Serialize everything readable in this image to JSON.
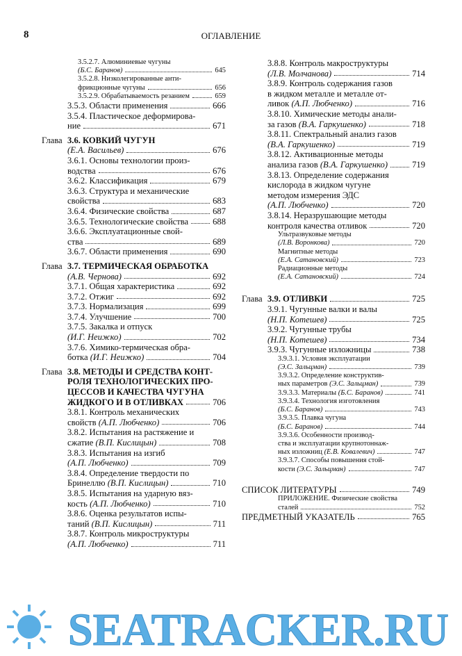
{
  "header": {
    "page_number": 8,
    "title": "ОГЛАВЛЕНИЕ"
  },
  "left": {
    "entries": [
      {
        "lines": [
          "3.5.2.7. Алюминиевые чугуны",
          "(Б.С. Баранов)"
        ],
        "page": 645
      },
      {
        "lines": [
          "3.5.2.8. Низколегированные анти-",
          "фрикционные чугуны"
        ],
        "page": 656
      },
      {
        "lines": [
          "3.5.2.9. Обрабатываемость резанием"
        ],
        "page": 659
      },
      {
        "lines": [
          "3.5.3. Области применения"
        ],
        "page": 666
      },
      {
        "lines": [
          "3.5.4. Пластическое деформирова-",
          "ние"
        ],
        "page": 671
      },
      {
        "label": "Глава",
        "lines": [
          "3.6. КОВКИЙ ЧУГУН",
          "(Е.А. Васильев)"
        ],
        "page": 676
      },
      {
        "lines": [
          "3.6.1. Основы технологии произ-",
          "водства"
        ],
        "page": 676
      },
      {
        "lines": [
          "3.6.2. Классификация"
        ],
        "page": 679
      },
      {
        "lines": [
          "3.6.3. Структура и механические",
          "свойства"
        ],
        "page": 683
      },
      {
        "lines": [
          "3.6.4. Физические свойства"
        ],
        "page": 687
      },
      {
        "lines": [
          "3.6.5. Технологические свойства"
        ],
        "page": 688
      },
      {
        "lines": [
          "3.6.6. Эксплуатационные свой-",
          "ства"
        ],
        "page": 689
      },
      {
        "lines": [
          "3.6.7. Области применения"
        ],
        "page": 690
      },
      {
        "label": "Глава",
        "lines": [
          "3.7. ТЕРМИЧЕСКАЯ ОБРАБОТКА",
          "(А.В. Чернова)"
        ],
        "page": 692
      },
      {
        "lines": [
          "3.7.1. Общая характеристика"
        ],
        "page": 692
      },
      {
        "lines": [
          "3.7.2. Отжиг"
        ],
        "page": 692
      },
      {
        "lines": [
          "3.7.3. Нормализация"
        ],
        "page": 699
      },
      {
        "lines": [
          "3.7.4. Улучшение"
        ],
        "page": 700
      },
      {
        "lines": [
          "3.7.5. Закалка и отпуск",
          "(И.Г. Неижко)"
        ],
        "page": 702
      },
      {
        "lines": [
          "3.7.6. Химико-термическая обра-",
          "ботка (И.Г. Неижко)"
        ],
        "page": 704
      },
      {
        "label": "Глава",
        "lines": [
          "3.8. МЕТОДЫ И СРЕДСТВА КОНТ-",
          "РОЛЯ ТЕХНОЛОГИЧЕСКИХ ПРО-",
          "ЦЕССОВ И КАЧЕСТВА ЧУГУНА",
          "ЖИДКОГО И В ОТЛИВКАХ"
        ],
        "page": 706
      },
      {
        "lines": [
          "3.8.1. Контроль механических",
          "свойств (А.П. Любченко)"
        ],
        "page": 706
      },
      {
        "lines": [
          "3.8.2. Испытания на растяжение и",
          "сжатие (В.П. Кислицын)"
        ],
        "page": 708
      },
      {
        "lines": [
          "3.8.3. Испытания на изгиб",
          "(А.П. Любченко)"
        ],
        "page": 709
      },
      {
        "lines": [
          "3.8.4. Определение твердости по",
          "Бринеллю (В.П. Кислицын)"
        ],
        "page": 710
      },
      {
        "lines": [
          "3.8.5. Испытания на ударную вяз-",
          "кость (А.П. Любченко)"
        ],
        "page": 710
      },
      {
        "lines": [
          "3.8.6. Оценка результатов испы-",
          "таний (В.П. Кислицын)"
        ],
        "page": 711
      },
      {
        "lines": [
          "3.8.7. Контроль микроструктуры",
          "(А.П. Любченко)"
        ],
        "page": 711
      }
    ]
  },
  "right": {
    "entries": [
      {
        "lines": [
          "3.8.8. Контроль макроструктуры",
          "(Л.В. Молчанова)"
        ],
        "page": 714
      },
      {
        "lines": [
          "3.8.9. Контроль содержания газов",
          "в жидком металле и металле от-",
          "ливок (А.П. Любченко)"
        ],
        "page": 716
      },
      {
        "lines": [
          "3.8.10. Химические методы анали-",
          "за газов (В.А. Гаркушенко)"
        ],
        "page": 718
      },
      {
        "lines": [
          "3.8.11. Спектральный анализ газов",
          "(В.А. Гаркушенко)"
        ],
        "page": 719
      },
      {
        "lines": [
          "3.8.12. Активационные методы",
          "анализа газов (В.А. Гаркушенко)"
        ],
        "page": 719
      },
      {
        "lines": [
          "3.8.13. Определение содержания",
          "кислорода в жидком чугуне",
          "методом измерения ЭДС",
          "(А.П. Любченко)"
        ],
        "page": 720
      },
      {
        "lines": [
          "3.8.14. Неразрушающие методы",
          "контроля качества отливок"
        ],
        "page": 720
      },
      {
        "lines": [
          "Ультразвуковые методы",
          "(Л.В. Воронкова)"
        ],
        "page": 720
      },
      {
        "lines": [
          "Магнитные методы",
          "(Е.А. Сатановский)"
        ],
        "page": 723
      },
      {
        "lines": [
          "Радиационные методы",
          "(Е.А. Сатановский)"
        ],
        "page": 724
      },
      {
        "label": "Глава",
        "lines": [
          "3.9. ОТЛИВКИ"
        ],
        "page": 725
      },
      {
        "lines": [
          "3.9.1. Чугунные валки и валы",
          "(Н.П. Котешев)"
        ],
        "page": 725
      },
      {
        "lines": [
          "3.9.2. Чугунные трубы",
          "(Н.П. Котешев)"
        ],
        "page": 734
      },
      {
        "lines": [
          "3.9.3. Чугунные изложницы"
        ],
        "page": 738
      },
      {
        "lines": [
          "3.9.3.1. Условия эксплуатации",
          "(Э.С. Зальцман)"
        ],
        "page": 739
      },
      {
        "lines": [
          "3.9.3.2. Определение конструктив-",
          "ных параметров (Э.С. Зальцман)"
        ],
        "page": 739
      },
      {
        "lines": [
          "3.9.3.3. Материалы (Б.С. Баранов)"
        ],
        "page": 741
      },
      {
        "lines": [
          "3.9.3.4. Технология изготовления",
          "(Б.С. Баранов)"
        ],
        "page": 743
      },
      {
        "lines": [
          "3.9.3.5. Плавка чугуна",
          "(Б.С. Баранов)"
        ],
        "page": 744
      },
      {
        "lines": [
          "3.9.3.6. Особенности производ-",
          "ства и эксплуатации крупнотоннаж-",
          "ных изложниц (Е.В. Ковалевич)"
        ],
        "page": 747
      },
      {
        "lines": [
          "3.9.3.7. Способы повышения стой-",
          "кости (Э.С. Зальцман)"
        ],
        "page": 747
      },
      {
        "lines": [
          "СПИСОК ЛИТЕРАТУРЫ"
        ],
        "page": 749
      },
      {
        "lines": [
          "ПРИЛОЖЕНИЕ. Физические свойства",
          "сталей"
        ],
        "page": 752
      },
      {
        "lines": [
          "ПРЕДМЕТНЫЙ УКАЗАТЕЛЬ"
        ],
        "page": 765
      }
    ]
  },
  "watermark": "SEATRACKER.RU"
}
